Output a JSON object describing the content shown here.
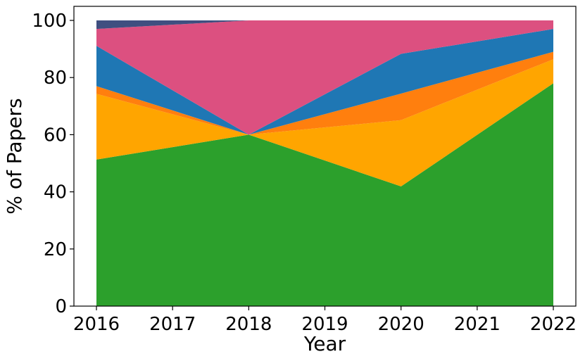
{
  "chart_data": {
    "type": "area",
    "stacked": true,
    "title": "",
    "xlabel": "Year",
    "ylabel": "% of Papers",
    "x": [
      2016,
      2018,
      2020,
      2022
    ],
    "xticks": [
      "2016",
      "2017",
      "2018",
      "2019",
      "2020",
      "2021",
      "2022"
    ],
    "yticks": [
      "0",
      "20",
      "40",
      "60",
      "80",
      "100"
    ],
    "xlim": [
      2016,
      2022
    ],
    "ylim": [
      0,
      100
    ],
    "grid": false,
    "legend": "none",
    "series": [
      {
        "values": [
          51.3,
          60.0,
          41.9,
          78.0
        ],
        "color": "#2ca02c"
      },
      {
        "values": [
          23.0,
          0.0,
          23.2,
          8.4
        ],
        "color": "#ffa500"
      },
      {
        "values": [
          2.7,
          0.0,
          9.3,
          2.6
        ],
        "color": "#ff7f0e"
      },
      {
        "values": [
          14.1,
          0.0,
          13.9,
          8.0
        ],
        "color": "#1f77b4"
      },
      {
        "values": [
          5.9,
          40.0,
          11.7,
          3.0
        ],
        "color": "#dc5080"
      },
      {
        "values": [
          3.0,
          0.0,
          0.0,
          0.0
        ],
        "color": "#3f4f80"
      }
    ]
  }
}
